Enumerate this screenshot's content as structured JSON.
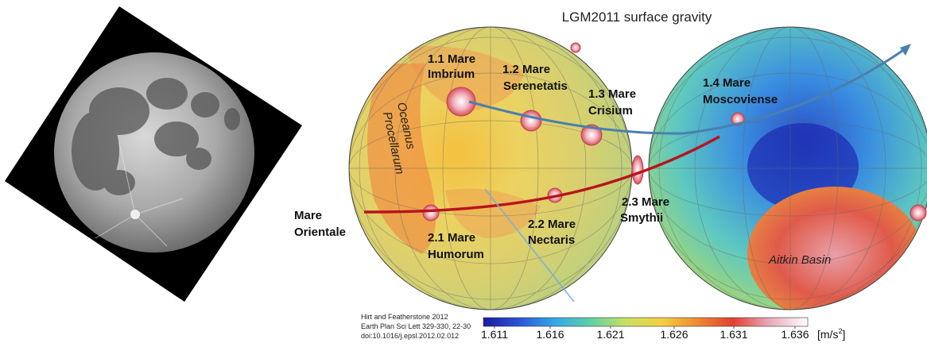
{
  "title": "LGM2011 surface gravity",
  "labels": {
    "imbrium": [
      "1.1 Mare",
      "Imbrium"
    ],
    "serenitatis": [
      "1.2 Mare",
      "Serenetatis"
    ],
    "crisium": [
      "1.3 Mare",
      "Crisium"
    ],
    "moscoviense": [
      "1.4 Mare",
      "Moscoviense"
    ],
    "nectaris": [
      "2.2 Mare",
      "Nectaris"
    ],
    "humorum": [
      "2.1 Mare",
      "Humorum"
    ],
    "smythii": [
      "2.3 Mare",
      "Smythii"
    ],
    "orientale": [
      "Mare",
      "Orientale"
    ],
    "procellarum": [
      "Oceanus",
      "Procellarum"
    ],
    "aitkin": "Aitkin Basin"
  },
  "citation": [
    "Hirt and Featherstone 2012",
    "Earth Plan Sci Lett 329-330, 22-30",
    "doi:10.1016/j.epsl.2012.02.012"
  ],
  "colorbar": {
    "ticks": [
      "1.611",
      "1.616",
      "1.621",
      "1.626",
      "1.631",
      "1.636"
    ],
    "unit": "[m/s",
    "unit_sup": "2",
    "unit_close": "]",
    "colors": [
      "#1a1aa0",
      "#2a55d8",
      "#33a8e8",
      "#5fd0a8",
      "#c8e060",
      "#f4d040",
      "#f08a30",
      "#e04030",
      "#e8a8b8",
      "#ffffff"
    ]
  }
}
